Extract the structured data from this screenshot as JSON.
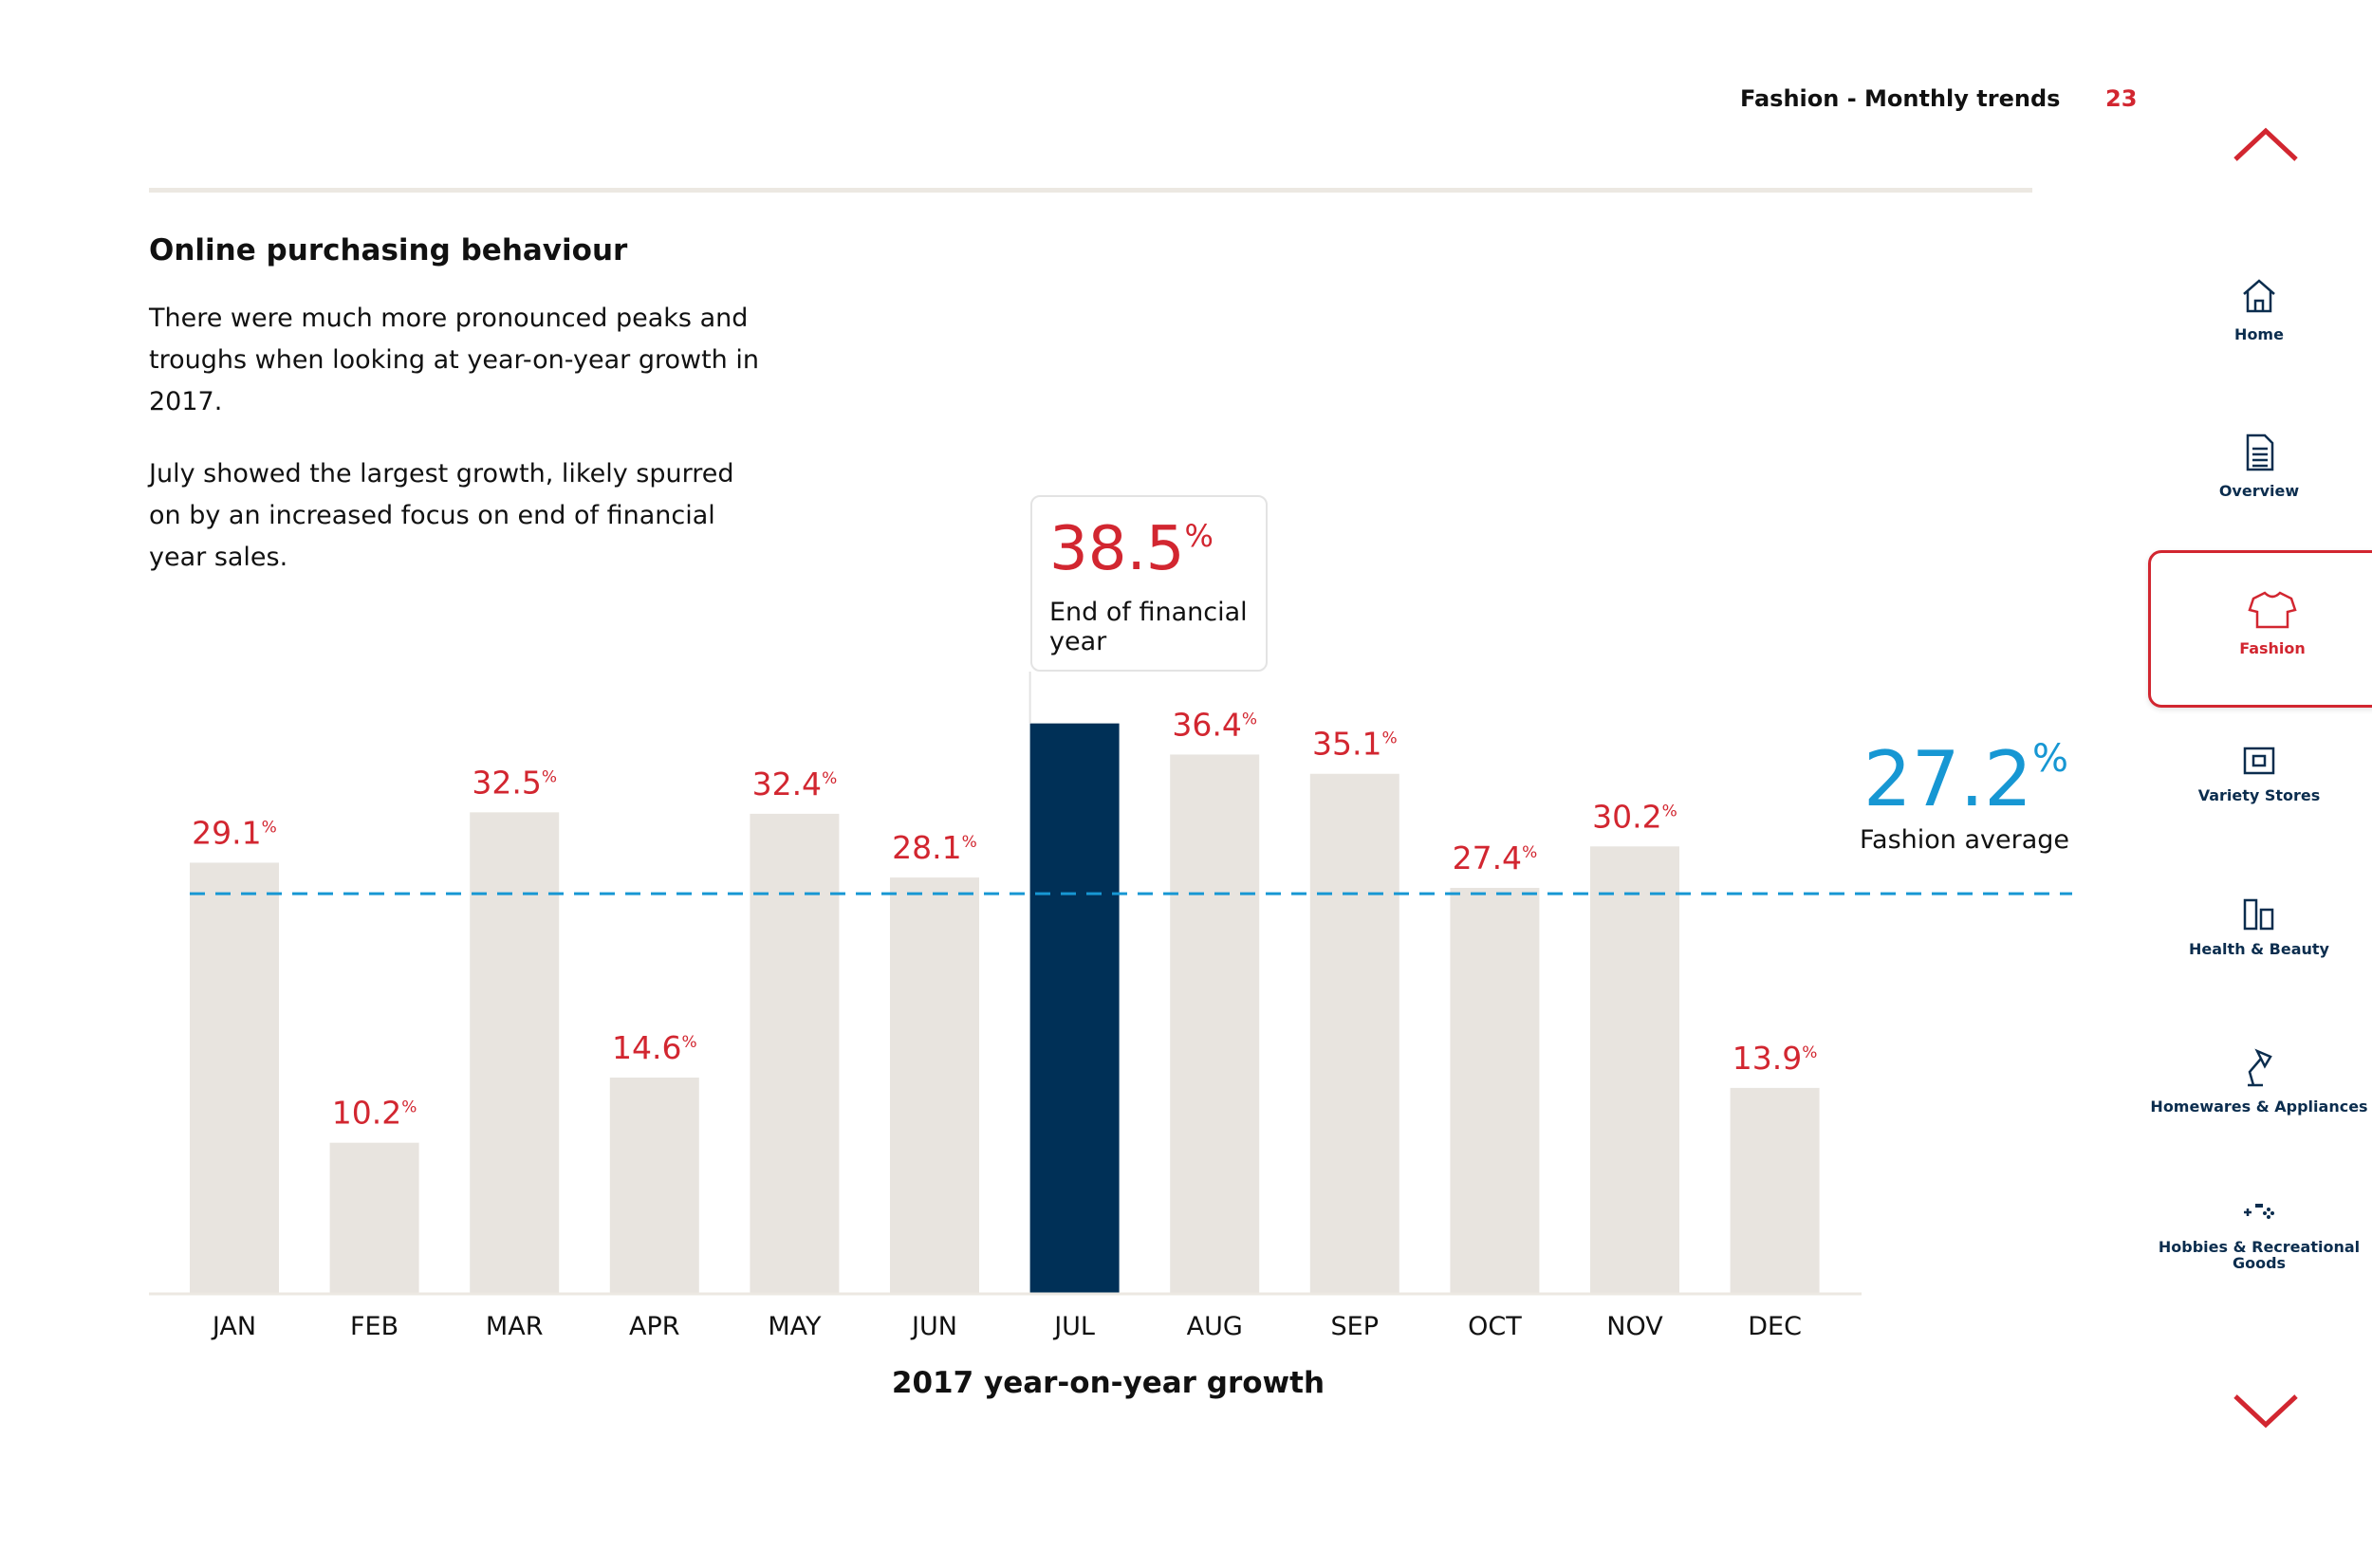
{
  "header": {
    "title": "Fashion - Monthly trends",
    "page": "23"
  },
  "heading": "Online purchasing behaviour",
  "paragraphs": [
    "There were much more pronounced peaks and troughs when looking at year-on-year growth in 2017.",
    "July showed the largest growth, likely spurred on by an increased focus on end of financial year sales."
  ],
  "callout": {
    "value": "38.5",
    "unit": "%",
    "label": "End of financial year"
  },
  "average": {
    "value": "27.2",
    "unit": "%",
    "label": "Fashion average"
  },
  "chart_data": {
    "type": "bar",
    "title": "2017 year-on-year growth",
    "categories": [
      "JAN",
      "FEB",
      "MAR",
      "APR",
      "MAY",
      "JUN",
      "JUL",
      "AUG",
      "SEP",
      "OCT",
      "NOV",
      "DEC"
    ],
    "values": [
      29.1,
      10.2,
      32.5,
      14.6,
      32.4,
      28.1,
      38.5,
      36.4,
      35.1,
      27.4,
      30.2,
      13.9
    ],
    "value_labels": [
      "29.1",
      "10.2",
      "32.5",
      "14.6",
      "32.4",
      "28.1",
      "38.5",
      "36.4",
      "35.1",
      "27.4",
      "30.2",
      "13.9"
    ],
    "value_unit": "%",
    "highlight_category": "JUL",
    "reference_line": 27.2,
    "ylim": [
      0,
      40
    ],
    "grid": false,
    "colors": {
      "bar": "#e8e4df",
      "highlight": "#003057",
      "label": "#d22630",
      "average": "#1797d3"
    }
  },
  "sidebar": {
    "items": [
      {
        "label": "Home",
        "icon": "home-icon"
      },
      {
        "label": "Overview",
        "icon": "document-icon"
      },
      {
        "label": "Fashion",
        "icon": "tshirt-icon",
        "active": true
      },
      {
        "label": "Variety Stores",
        "icon": "store-icon"
      },
      {
        "label": "Health & Beauty",
        "icon": "bottles-icon"
      },
      {
        "label": "Homewares & Appliances",
        "icon": "lamp-icon"
      },
      {
        "label": "Hobbies & Recreational Goods",
        "icon": "gamepad-icon"
      }
    ]
  }
}
